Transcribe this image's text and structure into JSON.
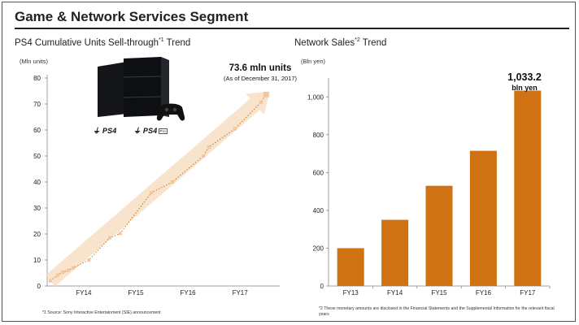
{
  "title": "Game & Network Services Segment",
  "accent": "#cf7214",
  "left": {
    "subtitle": "PS4 Cumulative Units Sell-through",
    "subtitle_sup": "*1",
    "subtitle_suffix": " Trend",
    "unit": "(Mln units)",
    "callout_value": "73.6 mln units",
    "callout_note": "(As of December 31, 2017)",
    "footnote": "*1 Source: Sony Interactive Entertainment (SIE) announcement",
    "logo_ps4": "PS4",
    "logo_ps4pro": "PS4",
    "pro_badge": "Pro"
  },
  "right": {
    "subtitle": "Network Sales",
    "subtitle_sup": "*2",
    "subtitle_suffix": " Trend",
    "unit": "(Bln yen)",
    "callout_value": "1,033.2",
    "callout_unit": "bln yen",
    "footnote": "*2 These monetary amounts are disclosed in the Financial Statements and the Supplemental Information for the relevant fiscal years"
  },
  "chart_data": [
    {
      "type": "scatter",
      "title": "PS4 Cumulative Units Sell-through Trend",
      "ylabel": "(Mln units)",
      "ylim": [
        0,
        80
      ],
      "yticks": [
        0,
        10,
        20,
        30,
        40,
        50,
        60,
        70,
        80
      ],
      "x_labels": [
        "FY14",
        "FY15",
        "FY16",
        "FY17"
      ],
      "grid": false,
      "points": [
        {
          "x": 0.3,
          "y": 2
        },
        {
          "x": 1.0,
          "y": 4.2
        },
        {
          "x": 1.5,
          "y": 5.3
        },
        {
          "x": 2.0,
          "y": 6
        },
        {
          "x": 2.5,
          "y": 7
        },
        {
          "x": 4.0,
          "y": 10
        },
        {
          "x": 6.0,
          "y": 18.5
        },
        {
          "x": 7.0,
          "y": 20.2
        },
        {
          "x": 10.0,
          "y": 35.9
        },
        {
          "x": 12.0,
          "y": 40
        },
        {
          "x": 15.0,
          "y": 50
        },
        {
          "x": 15.5,
          "y": 53.4
        },
        {
          "x": 18.0,
          "y": 60.4
        },
        {
          "x": 20.5,
          "y": 70.6
        },
        {
          "x": 21.0,
          "y": 73.6
        }
      ],
      "x_max": 22,
      "x_label_positions": [
        3.5,
        8.5,
        13.5,
        18.5
      ]
    },
    {
      "type": "bar",
      "title": "Network Sales Trend",
      "ylabel": "(Bln yen)",
      "categories": [
        "FY13",
        "FY14",
        "FY15",
        "FY16",
        "FY17"
      ],
      "values": [
        200,
        350,
        530,
        715,
        1033.2
      ],
      "ylim": [
        0,
        1100
      ],
      "yticks": [
        0,
        200,
        400,
        600,
        800,
        1000
      ],
      "ytick_labels": [
        "0",
        "200",
        "400",
        "600",
        "800",
        "1,000"
      ],
      "grid": false
    }
  ]
}
